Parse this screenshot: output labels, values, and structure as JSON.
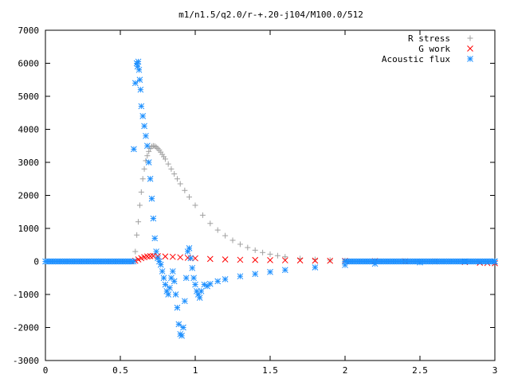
{
  "chart_data": {
    "type": "scatter",
    "title": "m1/n1.5/q2.0/r-+.20-j104/M100.0/512",
    "xlabel": "",
    "ylabel": "",
    "xlim": [
      0,
      3
    ],
    "ylim": [
      -3000,
      7000
    ],
    "x_ticks": [
      "0",
      "0.5",
      "1",
      "1.5",
      "2",
      "2.5",
      "3"
    ],
    "y_ticks": [
      "-3000",
      "-2000",
      "-1000",
      "0",
      "1000",
      "2000",
      "3000",
      "4000",
      "5000",
      "6000",
      "7000"
    ],
    "grid": false,
    "legend_position": "top-right",
    "series": [
      {
        "name": "R stress",
        "marker": "+",
        "color": "#a0a0a0",
        "x": [
          0.6,
          0.61,
          0.62,
          0.63,
          0.64,
          0.65,
          0.66,
          0.67,
          0.68,
          0.69,
          0.7,
          0.71,
          0.72,
          0.73,
          0.74,
          0.75,
          0.76,
          0.77,
          0.78,
          0.79,
          0.8,
          0.82,
          0.84,
          0.86,
          0.88,
          0.9,
          0.93,
          0.96,
          1.0,
          1.05,
          1.1,
          1.15,
          1.2,
          1.25,
          1.3,
          1.35,
          1.4,
          1.45,
          1.5,
          1.55,
          1.6,
          1.7,
          1.8,
          1.9,
          2.0,
          2.2,
          2.4,
          2.6,
          2.8,
          2.95
        ],
        "y": [
          300,
          800,
          1200,
          1700,
          2100,
          2500,
          2800,
          3050,
          3200,
          3330,
          3420,
          3480,
          3500,
          3490,
          3460,
          3420,
          3370,
          3310,
          3240,
          3170,
          3100,
          2950,
          2800,
          2650,
          2500,
          2350,
          2150,
          1950,
          1700,
          1400,
          1150,
          950,
          780,
          640,
          520,
          420,
          340,
          270,
          220,
          175,
          140,
          90,
          60,
          40,
          28,
          15,
          10,
          5,
          2,
          0
        ]
      },
      {
        "name": "G work",
        "marker": "x",
        "color": "#ff0000",
        "x": [
          0.6,
          0.62,
          0.64,
          0.66,
          0.68,
          0.7,
          0.72,
          0.75,
          0.8,
          0.85,
          0.9,
          0.95,
          1.0,
          1.1,
          1.2,
          1.3,
          1.4,
          1.5,
          1.6,
          1.7,
          1.8,
          1.9,
          2.0,
          2.2,
          2.4,
          2.6,
          2.8,
          2.9,
          2.95,
          3.0
        ],
        "y": [
          20,
          60,
          100,
          130,
          150,
          160,
          165,
          160,
          150,
          140,
          125,
          110,
          95,
          75,
          60,
          50,
          45,
          40,
          35,
          30,
          25,
          20,
          15,
          10,
          5,
          0,
          -20,
          -40,
          -50,
          -55
        ]
      },
      {
        "name": "Acoustic flux",
        "marker": "*",
        "color": "#1e90ff",
        "x": [
          0.59,
          0.6,
          0.61,
          0.615,
          0.62,
          0.625,
          0.63,
          0.635,
          0.64,
          0.65,
          0.66,
          0.67,
          0.68,
          0.69,
          0.7,
          0.71,
          0.72,
          0.73,
          0.74,
          0.75,
          0.76,
          0.77,
          0.78,
          0.79,
          0.8,
          0.81,
          0.82,
          0.83,
          0.84,
          0.85,
          0.86,
          0.87,
          0.88,
          0.89,
          0.9,
          0.91,
          0.92,
          0.93,
          0.94,
          0.95,
          0.96,
          0.97,
          0.98,
          0.99,
          1.0,
          1.01,
          1.02,
          1.03,
          1.04,
          1.06,
          1.08,
          1.1,
          1.15,
          1.2,
          1.3,
          1.4,
          1.5,
          1.6,
          1.8,
          2.0,
          2.2,
          2.5,
          2.8,
          3.0
        ],
        "y": [
          3400,
          5400,
          6000,
          5900,
          6050,
          5800,
          5500,
          5200,
          4700,
          4400,
          4100,
          3800,
          3500,
          3000,
          2500,
          1900,
          1300,
          700,
          300,
          100,
          0,
          -100,
          -300,
          -500,
          -700,
          -900,
          -1000,
          -800,
          -500,
          -300,
          -600,
          -1000,
          -1400,
          -1900,
          -2200,
          -2250,
          -2000,
          -1200,
          -500,
          300,
          400,
          100,
          -200,
          -500,
          -700,
          -900,
          -1000,
          -1100,
          -900,
          -700,
          -750,
          -680,
          -600,
          -540,
          -450,
          -380,
          -320,
          -260,
          -180,
          -110,
          -70,
          -30,
          0,
          0
        ]
      }
    ]
  }
}
